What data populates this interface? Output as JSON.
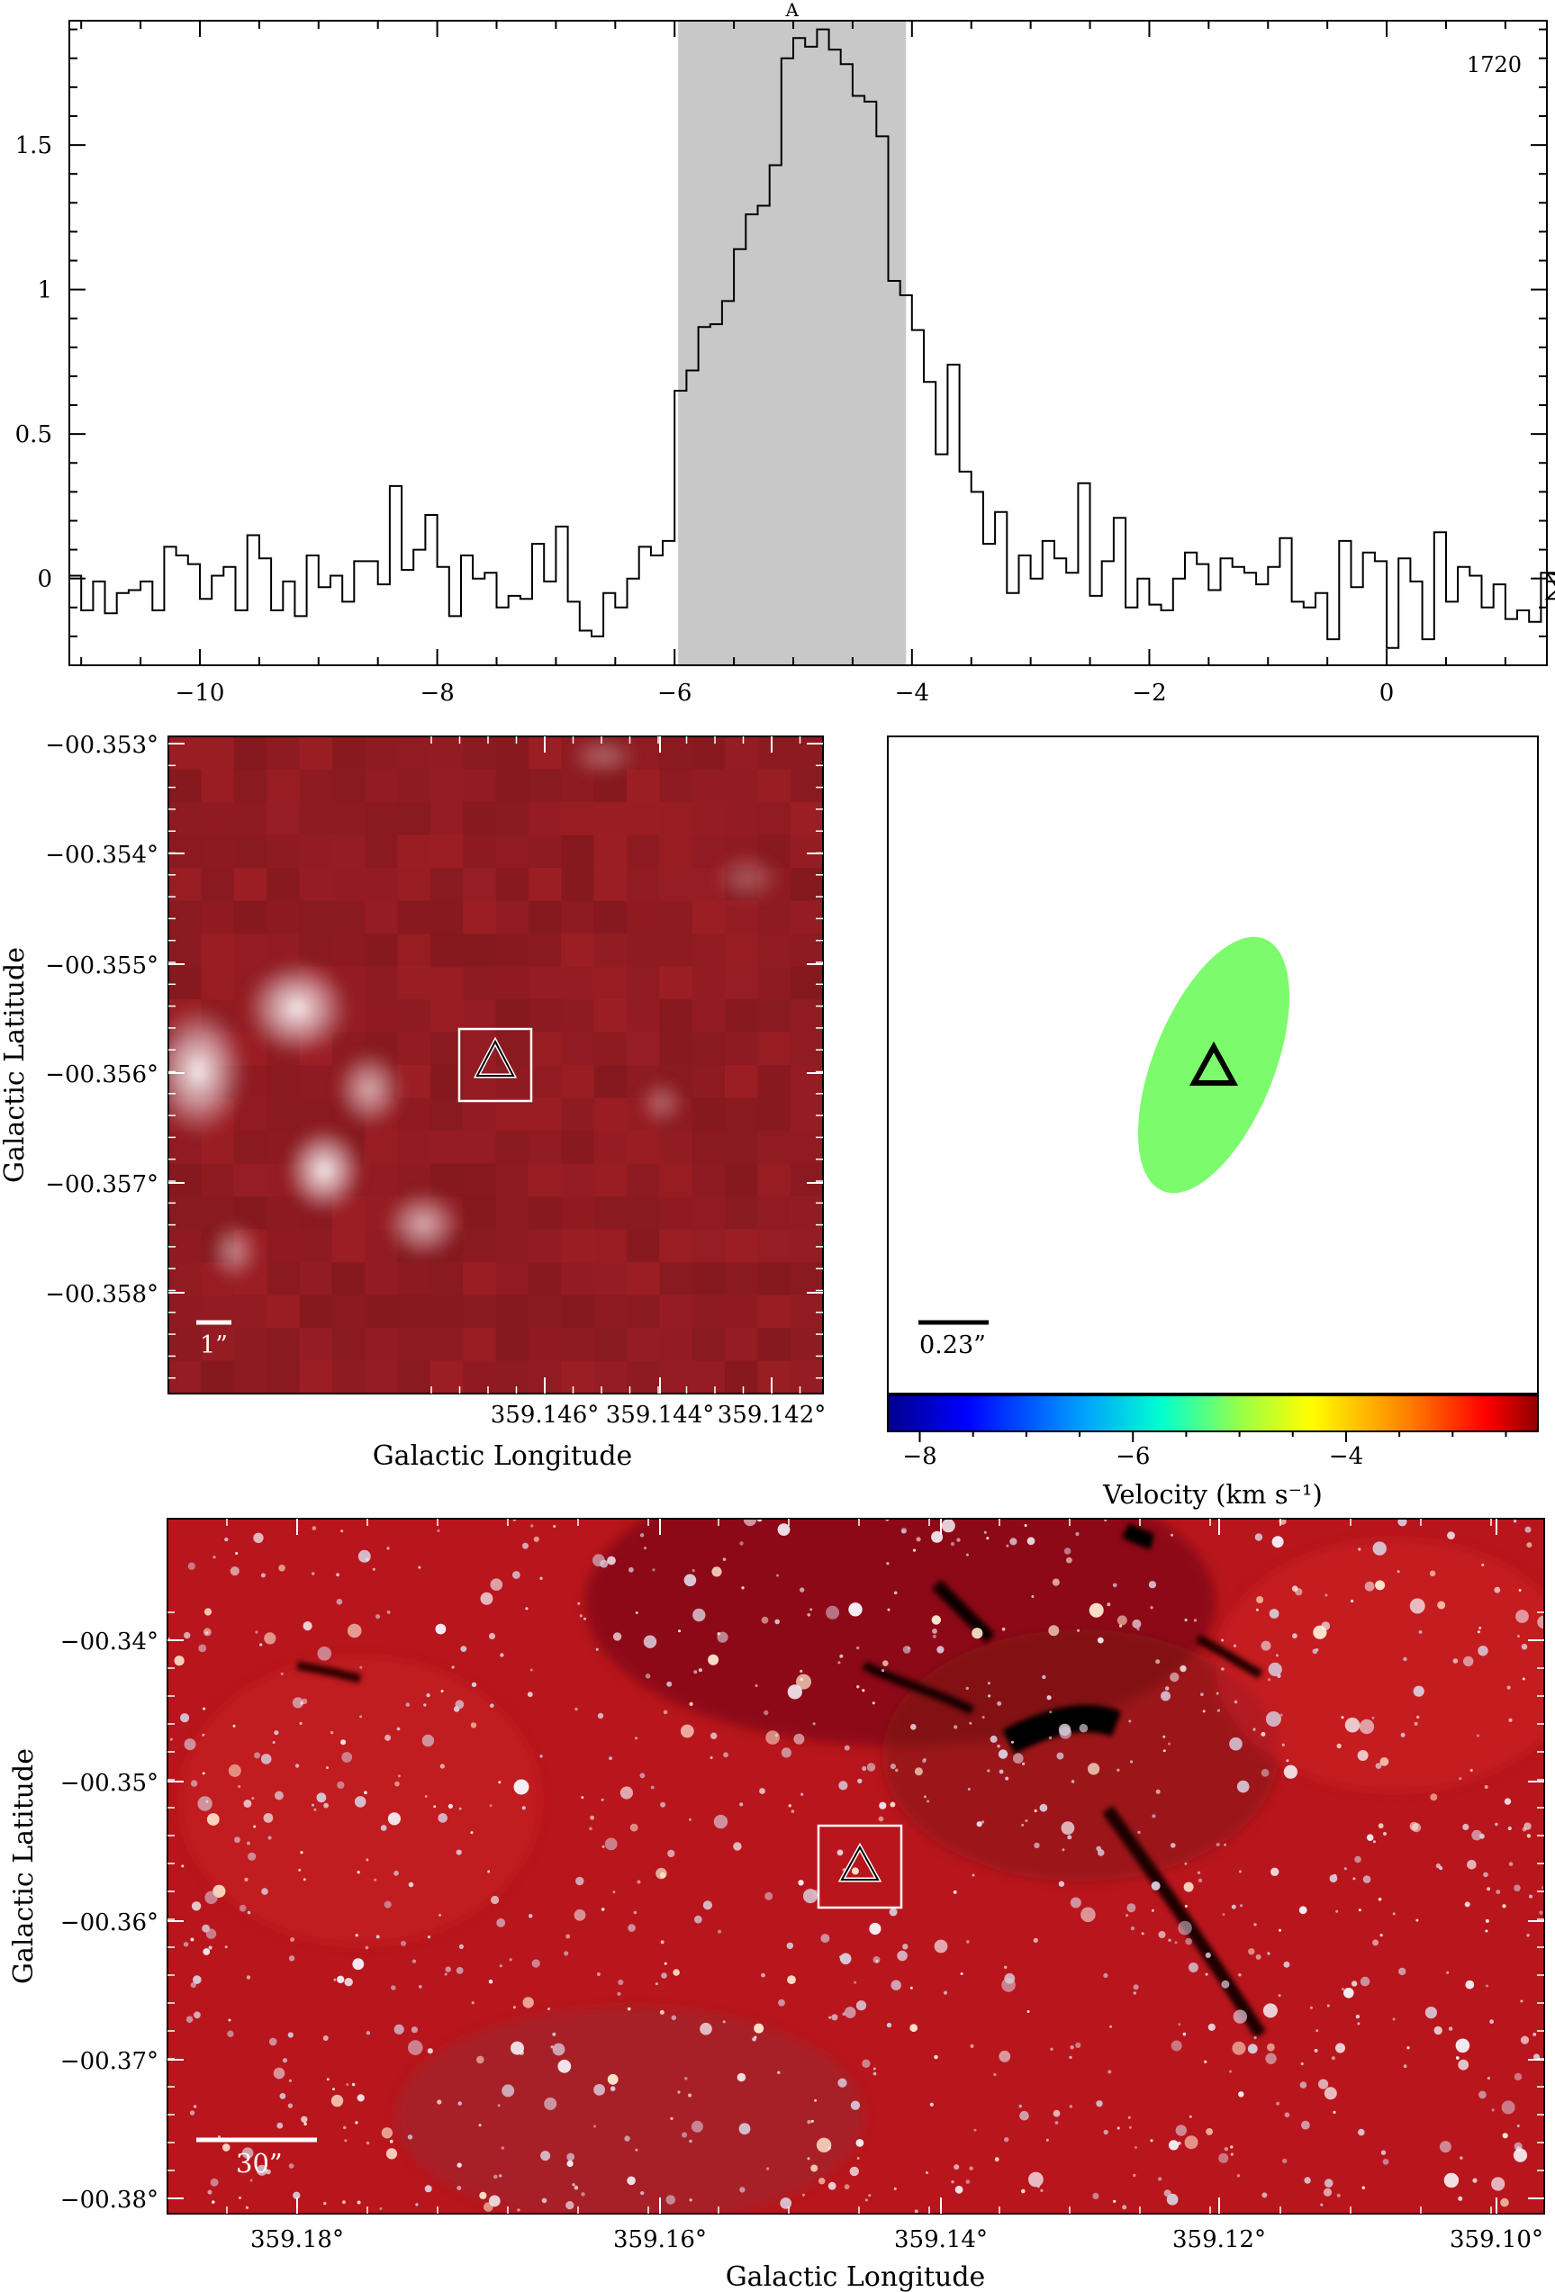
{
  "spectrum": {
    "type": "line",
    "line_label": "1720",
    "region_label": "A",
    "xlim": [
      -11.1,
      1.35
    ],
    "ylim": [
      -0.3,
      1.93
    ],
    "x_ticks": [
      -10,
      -8,
      -6,
      -4,
      -2,
      0
    ],
    "x_tick_labels": [
      "−10",
      "−8",
      "−6",
      "−4",
      "−2",
      "0"
    ],
    "y_ticks": [
      0,
      0.5,
      1,
      1.5
    ],
    "y_tick_labels": [
      "0",
      "0.5",
      "1",
      "1.5"
    ],
    "shaded_region": [
      -5.97,
      -4.05
    ],
    "shade_color": "#c8c8c8",
    "x0": -11.1,
    "dx": 0.1,
    "y": [
      0.01,
      -0.11,
      -0.01,
      -0.12,
      -0.05,
      -0.04,
      -0.01,
      -0.11,
      0.11,
      0.08,
      0.05,
      -0.07,
      0.01,
      0.04,
      -0.11,
      0.15,
      0.07,
      -0.11,
      -0.01,
      -0.13,
      0.08,
      -0.03,
      0.01,
      -0.08,
      0.06,
      0.06,
      -0.02,
      0.32,
      0.03,
      0.1,
      0.22,
      0.04,
      -0.13,
      0.08,
      0.0,
      0.02,
      -0.1,
      -0.06,
      -0.07,
      0.12,
      -0.01,
      0.18,
      -0.08,
      -0.18,
      -0.2,
      -0.05,
      -0.1,
      -0.0,
      0.11,
      0.08,
      0.13,
      0.65,
      0.72,
      0.87,
      0.88,
      0.96,
      1.14,
      1.26,
      1.29,
      1.43,
      1.8,
      1.87,
      1.84,
      1.9,
      1.83,
      1.78,
      1.67,
      1.65,
      1.53,
      1.03,
      0.98,
      0.86,
      0.68,
      0.43,
      0.74,
      0.37,
      0.3,
      0.12,
      0.23,
      -0.05,
      0.08,
      0.0,
      0.13,
      0.07,
      0.02,
      0.33,
      -0.06,
      0.06,
      0.21,
      -0.1,
      -0.0,
      -0.09,
      -0.11,
      -0.0,
      0.09,
      0.05,
      -0.04,
      0.07,
      0.04,
      0.02,
      -0.02,
      0.04,
      0.14,
      -0.08,
      -0.1,
      -0.05,
      -0.21,
      0.13,
      -0.03,
      0.09,
      0.06,
      -0.24,
      0.07,
      -0.01,
      -0.21,
      0.16,
      -0.08,
      0.04,
      0.01,
      -0.1,
      -0.02,
      -0.14,
      -0.11,
      -0.15,
      0.02,
      0.02,
      -0.07,
      0.02,
      -0.01
    ]
  },
  "zoom_map": {
    "xlabel": "Galactic Longitude",
    "ylabel": "Galactic Latitude",
    "x_tick_labels": [
      "359.146°",
      "359.144°",
      "359.142°"
    ],
    "y_tick_labels": [
      "−00.353°",
      "−00.354°",
      "−00.355°",
      "−00.356°",
      "−00.357°",
      "−00.358°"
    ],
    "scalebar_label": "1”"
  },
  "ellipse_panel": {
    "scalebar_label": "0.23”",
    "ellipse_color": "#7cfc6c",
    "colorbar_label": "Velocity (km s⁻¹)",
    "colorbar_tick_labels": [
      "−8",
      "−6",
      "−4"
    ],
    "colorbar_range": [
      -8.3,
      -2.2
    ],
    "colorbar_ticks": [
      -8,
      -6,
      -4
    ],
    "ellipse_velocity": -5.1
  },
  "wide_map": {
    "xlabel": "Galactic Longitude",
    "ylabel": "Galactic Latitude",
    "x_tick_labels": [
      "359.18°",
      "359.16°",
      "359.14°",
      "359.12°",
      "359.10°"
    ],
    "y_tick_labels": [
      "−00.34°",
      "−00.35°",
      "−00.36°",
      "−00.37°",
      "−00.38°"
    ],
    "scalebar_label": "30”"
  }
}
